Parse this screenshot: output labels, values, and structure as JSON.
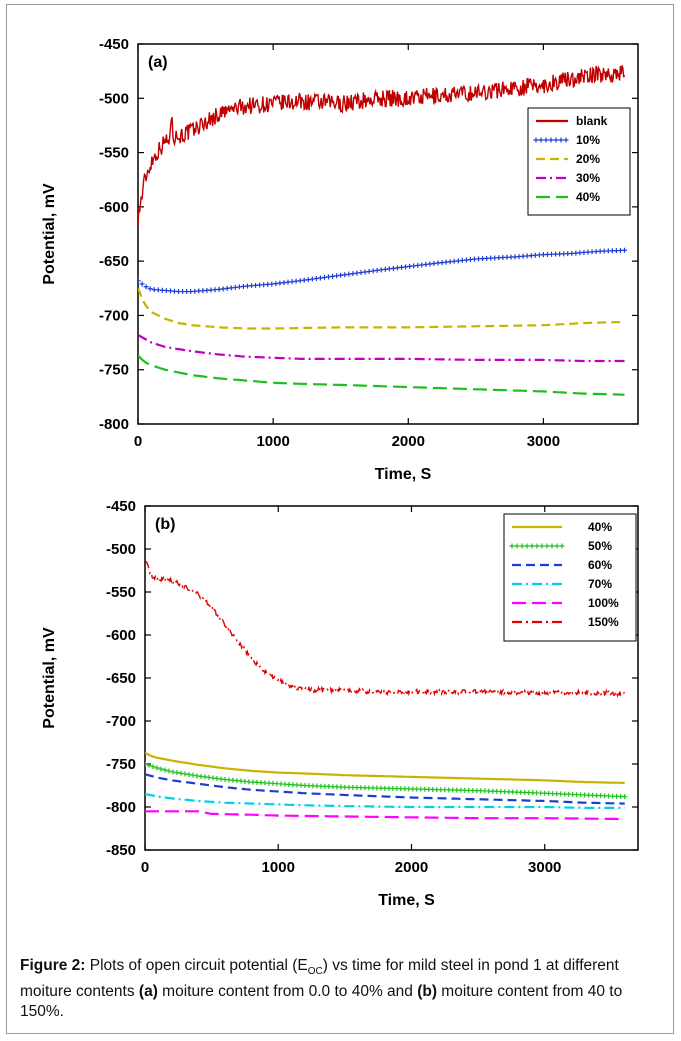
{
  "chart_data": [
    {
      "type": "line",
      "panel_label": "(a)",
      "title": "",
      "xlabel": "Time, S",
      "ylabel": "Potential, mV",
      "xlim": [
        0,
        3700
      ],
      "ylim": [
        -800,
        -450
      ],
      "xticks": [
        0,
        1000,
        2000,
        3000
      ],
      "yticks": [
        -800,
        -750,
        -700,
        -650,
        -600,
        -550,
        -500,
        -450
      ],
      "legend_position": "top-right",
      "series": [
        {
          "name": "blank",
          "color": "#c00000",
          "style": "solid",
          "noise": 8,
          "x": [
            0,
            50,
            100,
            150,
            200,
            240,
            250,
            260,
            300,
            400,
            500,
            600,
            700,
            800,
            1000,
            1200,
            1500,
            1800,
            2000,
            2200,
            2500,
            2800,
            3000,
            3200,
            3400,
            3600
          ],
          "y": [
            -610,
            -575,
            -558,
            -548,
            -540,
            -535,
            -505,
            -535,
            -535,
            -530,
            -522,
            -515,
            -510,
            -507,
            -505,
            -503,
            -505,
            -500,
            -500,
            -498,
            -495,
            -490,
            -488,
            -482,
            -478,
            -477
          ]
        },
        {
          "name": "10%",
          "color": "#1f3cd0",
          "style": "plus",
          "x": [
            0,
            50,
            100,
            200,
            300,
            400,
            600,
            800,
            1000,
            1200,
            1500,
            1800,
            2000,
            2200,
            2500,
            2800,
            3000,
            3200,
            3400,
            3600
          ],
          "y": [
            -668,
            -673,
            -676,
            -677,
            -678,
            -678,
            -676,
            -673,
            -671,
            -668,
            -663,
            -658,
            -655,
            -652,
            -648,
            -646,
            -644,
            -643,
            -641,
            -640
          ]
        },
        {
          "name": "20%",
          "color": "#c8b400",
          "style": "dash",
          "x": [
            0,
            50,
            100,
            200,
            300,
            400,
            600,
            800,
            1000,
            1500,
            2000,
            2500,
            3000,
            3300,
            3600
          ],
          "y": [
            -675,
            -690,
            -697,
            -703,
            -707,
            -709,
            -711,
            -712,
            -712,
            -711,
            -711,
            -710,
            -709,
            -707,
            -706
          ]
        },
        {
          "name": "30%",
          "color": "#c000c0",
          "style": "dashdot",
          "x": [
            0,
            100,
            200,
            400,
            600,
            800,
            1000,
            1200,
            1500,
            2000,
            2500,
            3000,
            3300,
            3600
          ],
          "y": [
            -718,
            -725,
            -729,
            -733,
            -736,
            -738,
            -739,
            -740,
            -740,
            -740,
            -741,
            -741,
            -742,
            -742
          ]
        },
        {
          "name": "40%",
          "color": "#1fbf1f",
          "style": "longdash",
          "x": [
            0,
            50,
            100,
            200,
            400,
            600,
            800,
            1000,
            1200,
            1500,
            2000,
            2500,
            3000,
            3300,
            3600
          ],
          "y": [
            -737,
            -743,
            -746,
            -750,
            -755,
            -758,
            -760,
            -762,
            -763,
            -764,
            -766,
            -768,
            -770,
            -772,
            -773
          ]
        }
      ]
    },
    {
      "type": "line",
      "panel_label": "(b)",
      "title": "",
      "xlabel": "Time, S",
      "ylabel": "Potential, mV",
      "xlim": [
        0,
        3700
      ],
      "ylim": [
        -850,
        -450
      ],
      "xticks": [
        0,
        1000,
        2000,
        3000
      ],
      "yticks": [
        -850,
        -800,
        -750,
        -700,
        -650,
        -600,
        -550,
        -500,
        -450
      ],
      "legend_position": "top-right",
      "series": [
        {
          "name": "40%",
          "color": "#c8b400",
          "style": "solid",
          "x": [
            0,
            50,
            100,
            200,
            400,
            600,
            800,
            1000,
            1200,
            1500,
            2000,
            2500,
            3000,
            3300,
            3600
          ],
          "y": [
            -737,
            -741,
            -743,
            -746,
            -751,
            -755,
            -758,
            -760,
            -761,
            -763,
            -765,
            -767,
            -769,
            -771,
            -772
          ]
        },
        {
          "name": "50%",
          "color": "#1fbf1f",
          "style": "plus",
          "x": [
            0,
            100,
            200,
            400,
            600,
            800,
            1000,
            1200,
            1500,
            2000,
            2500,
            3000,
            3300,
            3600
          ],
          "y": [
            -750,
            -755,
            -759,
            -764,
            -768,
            -771,
            -773,
            -775,
            -777,
            -779,
            -781,
            -784,
            -786,
            -788
          ]
        },
        {
          "name": "60%",
          "color": "#1f3cd0",
          "style": "dash",
          "x": [
            0,
            100,
            200,
            400,
            600,
            800,
            1000,
            1200,
            1500,
            2000,
            2500,
            3000,
            3300,
            3600
          ],
          "y": [
            -762,
            -766,
            -769,
            -773,
            -777,
            -780,
            -782,
            -784,
            -786,
            -789,
            -791,
            -793,
            -795,
            -796
          ]
        },
        {
          "name": "70%",
          "color": "#00d0e0",
          "style": "dashdot",
          "x": [
            0,
            100,
            200,
            400,
            600,
            800,
            1000,
            1200,
            1500,
            2000,
            2500,
            3000,
            3300,
            3600
          ],
          "y": [
            -785,
            -788,
            -790,
            -793,
            -795,
            -796,
            -797,
            -798,
            -799,
            -800,
            -800,
            -800,
            -801,
            -801
          ]
        },
        {
          "name": "100%",
          "color": "#ff00ff",
          "style": "longdash",
          "x": [
            0,
            200,
            400,
            500,
            800,
            1000,
            1500,
            2000,
            2500,
            3000,
            3600
          ],
          "y": [
            -805,
            -805,
            -805,
            -808,
            -809,
            -810,
            -811,
            -812,
            -813,
            -813,
            -814
          ]
        },
        {
          "name": "150%",
          "color": "#e00000",
          "style": "dashdot",
          "noise": 2.5,
          "x": [
            0,
            30,
            60,
            100,
            200,
            300,
            400,
            500,
            600,
            700,
            800,
            900,
            1000,
            1100,
            1200,
            1300,
            1500,
            1800,
            2000,
            2500,
            3000,
            3300,
            3600
          ],
          "y": [
            -510,
            -525,
            -533,
            -535,
            -537,
            -543,
            -553,
            -568,
            -588,
            -608,
            -627,
            -643,
            -653,
            -660,
            -663,
            -664,
            -664,
            -667,
            -666,
            -666,
            -667,
            -667,
            -668
          ]
        }
      ]
    }
  ],
  "caption": {
    "label": "Figure 2:",
    "text_part1": " Plots of open circuit potential (E",
    "subscript": "OC",
    "text_part2": ") vs time for mild steel in pond 1 at different moiture contents ",
    "a_label": "(a)",
    "text_part3": " moiture content from 0.0 to 40% and ",
    "b_label": "(b)",
    "text_part4": " moiture content from 40 to 150%."
  }
}
